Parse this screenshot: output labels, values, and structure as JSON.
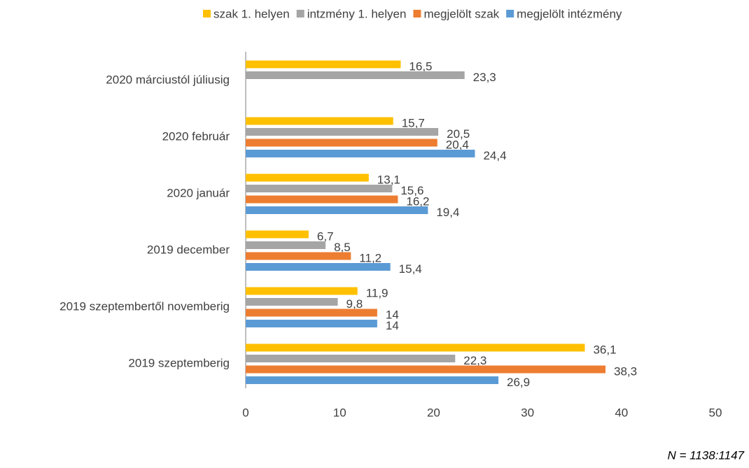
{
  "chart_data": {
    "type": "hbar",
    "categories": [
      "2020 márciustól júliusig",
      "2020 február",
      "2020 január",
      "2019 december",
      "2019 szeptembertől novemberig",
      "2019 szeptemberig"
    ],
    "series": [
      {
        "name": "szak 1. helyen",
        "color": "#ffc000",
        "values": [
          16.5,
          15.7,
          13.1,
          6.7,
          11.9,
          36.1
        ],
        "value_labels": [
          "16,5",
          "15,7",
          "13,1",
          "6,7",
          "11,9",
          "36,1"
        ]
      },
      {
        "name": "intzmény 1. helyen",
        "color": "#a5a5a5",
        "values": [
          23.3,
          20.5,
          15.6,
          8.5,
          9.8,
          22.3
        ],
        "value_labels": [
          "23,3",
          "20,5",
          "15,6",
          "8,5",
          "9,8",
          "22,3"
        ]
      },
      {
        "name": "megjelölt szak",
        "color": "#ed7d31",
        "values": [
          null,
          20.4,
          16.2,
          11.2,
          14,
          38.3
        ],
        "value_labels": [
          null,
          "20,4",
          "16,2",
          "11,2",
          "14",
          "38,3"
        ]
      },
      {
        "name": "megjelölt intézmény",
        "color": "#5b9bd5",
        "values": [
          null,
          24.4,
          19.4,
          15.4,
          14,
          26.9
        ],
        "value_labels": [
          null,
          "24,4",
          "19,4",
          "15,4",
          "14",
          "26,9"
        ]
      }
    ],
    "xlim": [
      0,
      50
    ],
    "xticks": [
      0,
      10,
      20,
      30,
      40,
      50
    ],
    "legend": "top",
    "note": "N = 1138:1147"
  }
}
